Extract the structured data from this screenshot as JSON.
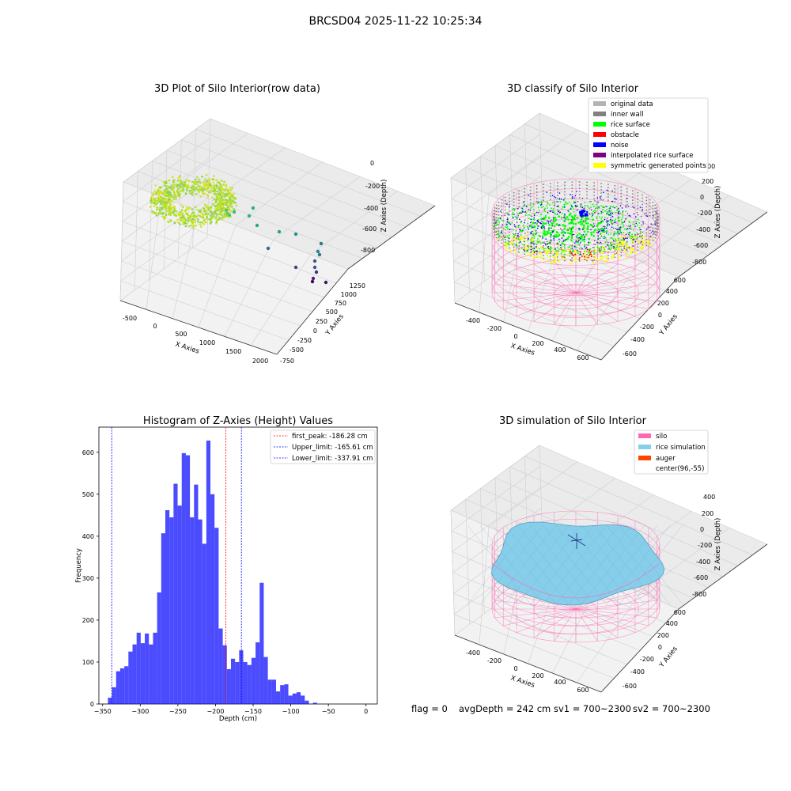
{
  "figure": {
    "suptitle": "BRCSD04 2025-11-22 10:25:34",
    "footer": {
      "flag": "flag = 0",
      "avg": "avgDepth = 242 cm",
      "sv1": "sv1 = 700~2300",
      "sv2": "sv2 = 700~2300"
    }
  },
  "panels": {
    "raw": {
      "title": "3D Plot of Silo Interior(row data)",
      "xlabel": "X Axies",
      "ylabel": "Y Axies",
      "zlabel": "Z Axies (Depth)",
      "xticks": [
        "-500",
        "0",
        "500",
        "1000",
        "1500",
        "2000"
      ],
      "yticks": [
        "-750",
        "-500",
        "-250",
        "0",
        "250",
        "500",
        "750",
        "1000",
        "1250"
      ],
      "zticks": [
        "0",
        "-200",
        "-400",
        "-600",
        "-800"
      ]
    },
    "classify": {
      "title": "3D classify of Silo Interior",
      "xlabel": "X Axies",
      "ylabel": "Y Axies",
      "zlabel": "Z Axies (Depth)",
      "xticks": [
        "-400",
        "-200",
        "0",
        "200",
        "400",
        "600"
      ],
      "yticks": [
        "-600",
        "-400",
        "-200",
        "0",
        "200",
        "400",
        "600"
      ],
      "zticks": [
        "400",
        "200",
        "0",
        "-200",
        "-400",
        "-600",
        "-800"
      ],
      "legend": [
        {
          "label": "original data",
          "color": "#b4b4b4"
        },
        {
          "label": "inner wall",
          "color": "#808080"
        },
        {
          "label": "rice surface",
          "color": "#00ff00"
        },
        {
          "label": "obstacle",
          "color": "#ff0000"
        },
        {
          "label": "noise",
          "color": "#0000ff"
        },
        {
          "label": "interpolated rice surface",
          "color": "#800080"
        },
        {
          "label": "symmetric generated points",
          "color": "#ffff00"
        }
      ]
    },
    "simulation": {
      "title": "3D simulation of Silo Interior",
      "xlabel": "X Axies",
      "ylabel": "Y Axies",
      "zlabel": "Z Axies (Depth)",
      "xticks": [
        "-400",
        "-200",
        "0",
        "200",
        "400",
        "600"
      ],
      "yticks": [
        "-600",
        "-400",
        "-200",
        "0",
        "200",
        "400",
        "600"
      ],
      "zticks": [
        "400",
        "200",
        "0",
        "-200",
        "-400",
        "-600",
        "-800"
      ],
      "legend": [
        {
          "label": "silo",
          "color": "#ff69b4"
        },
        {
          "label": "rice simulation",
          "color": "#87ceeb"
        },
        {
          "label": "auger",
          "color": "#ff4500"
        },
        {
          "label": "center(96,-55)",
          "color": ""
        }
      ]
    }
  },
  "chart_data": {
    "type": "bar",
    "title": "Histogram of Z-Axies (Height) Values",
    "xlabel": "Depth (cm)",
    "ylabel": "Frequency",
    "xlim": [
      -355,
      15
    ],
    "ylim": [
      0,
      660
    ],
    "xticks": [
      -350,
      -300,
      -250,
      -200,
      -150,
      -100,
      -50,
      0
    ],
    "yticks": [
      0,
      100,
      200,
      300,
      400,
      500,
      600
    ],
    "bar_color": "#0000ff",
    "bin_start": -343,
    "bin_width": 5.45,
    "values": [
      15,
      40,
      78,
      85,
      90,
      125,
      142,
      170,
      145,
      168,
      142,
      170,
      266,
      407,
      462,
      445,
      525,
      473,
      598,
      593,
      445,
      523,
      440,
      382,
      628,
      500,
      420,
      180,
      140,
      83,
      108,
      100,
      128,
      100,
      93,
      110,
      147,
      289,
      112,
      58,
      58,
      30,
      45,
      47,
      20,
      25,
      28,
      20,
      8,
      0,
      3
    ],
    "lines": [
      {
        "label": "first_peak: -186.28 cm",
        "x": -186.28,
        "color": "#ff0000"
      },
      {
        "label": "Upper_limit: -165.61 cm",
        "x": -165.61,
        "color": "#0000ff"
      },
      {
        "label": "Lower_limit: -337.91 cm",
        "x": -337.91,
        "color": "#0000ff"
      }
    ]
  }
}
